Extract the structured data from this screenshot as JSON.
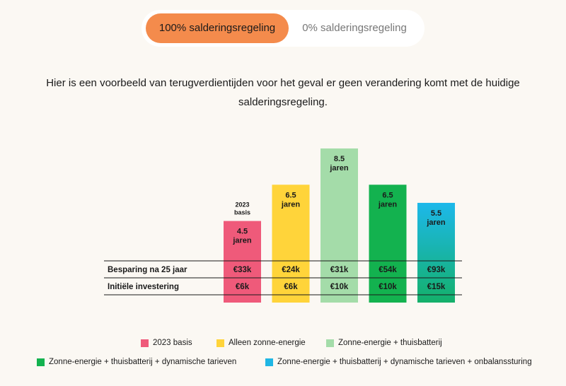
{
  "toggle": {
    "active_label": "100% salderingsregeling",
    "inactive_label": "0% salderingsregeling"
  },
  "intro": "Hier is een voorbeeld van terugverdientijden voor het geval er geen verandering komt met de huidige salderingsregeling.",
  "chart_data": {
    "type": "bar",
    "unit": "jaren",
    "categories": [
      "2023 basis",
      "Alleen zonne-energie",
      "Zonne-energie + thuisbatterij",
      "Zonne-energie + thuisbatterij + dynamische tarieven",
      "Zonne-energie + thuisbatterij + dynamische tarieven + onbalanssturing"
    ],
    "values": [
      4.5,
      6.5,
      8.5,
      6.5,
      5.5
    ],
    "value_labels": [
      "4.5",
      "6.5",
      "8.5",
      "6.5",
      "5.5"
    ],
    "top_label": {
      "index": 0,
      "line1": "2023",
      "line2": "basis"
    },
    "colors": [
      "#ef5a7a",
      "#ffd43a",
      "#a4dca9",
      "#13b24f",
      "#1fb6e4"
    ],
    "gradient_last": [
      "#1db8ea",
      "#14b06a"
    ],
    "table": {
      "rows": [
        {
          "label": "Besparing na 25 jaar",
          "values": [
            "€33k",
            "€24k",
            "€31k",
            "€54k",
            "€93k"
          ]
        },
        {
          "label": "Initiële investering",
          "values": [
            "€6k",
            "€6k",
            "€10k",
            "€10k",
            "€15k"
          ]
        }
      ]
    }
  },
  "legend": [
    {
      "label": "2023 basis",
      "color": "#ef5a7a"
    },
    {
      "label": "Alleen zonne-energie",
      "color": "#ffd43a"
    },
    {
      "label": "Zonne-energie + thuisbatterij",
      "color": "#a4dca9"
    },
    {
      "label": "Zonne-energie + thuisbatterij + dynamische tarieven",
      "color": "#13b24f"
    },
    {
      "label": "Zonne-energie + thuisbatterij + dynamische tarieven + onbalanssturing",
      "color": "#1fb6e4"
    }
  ]
}
